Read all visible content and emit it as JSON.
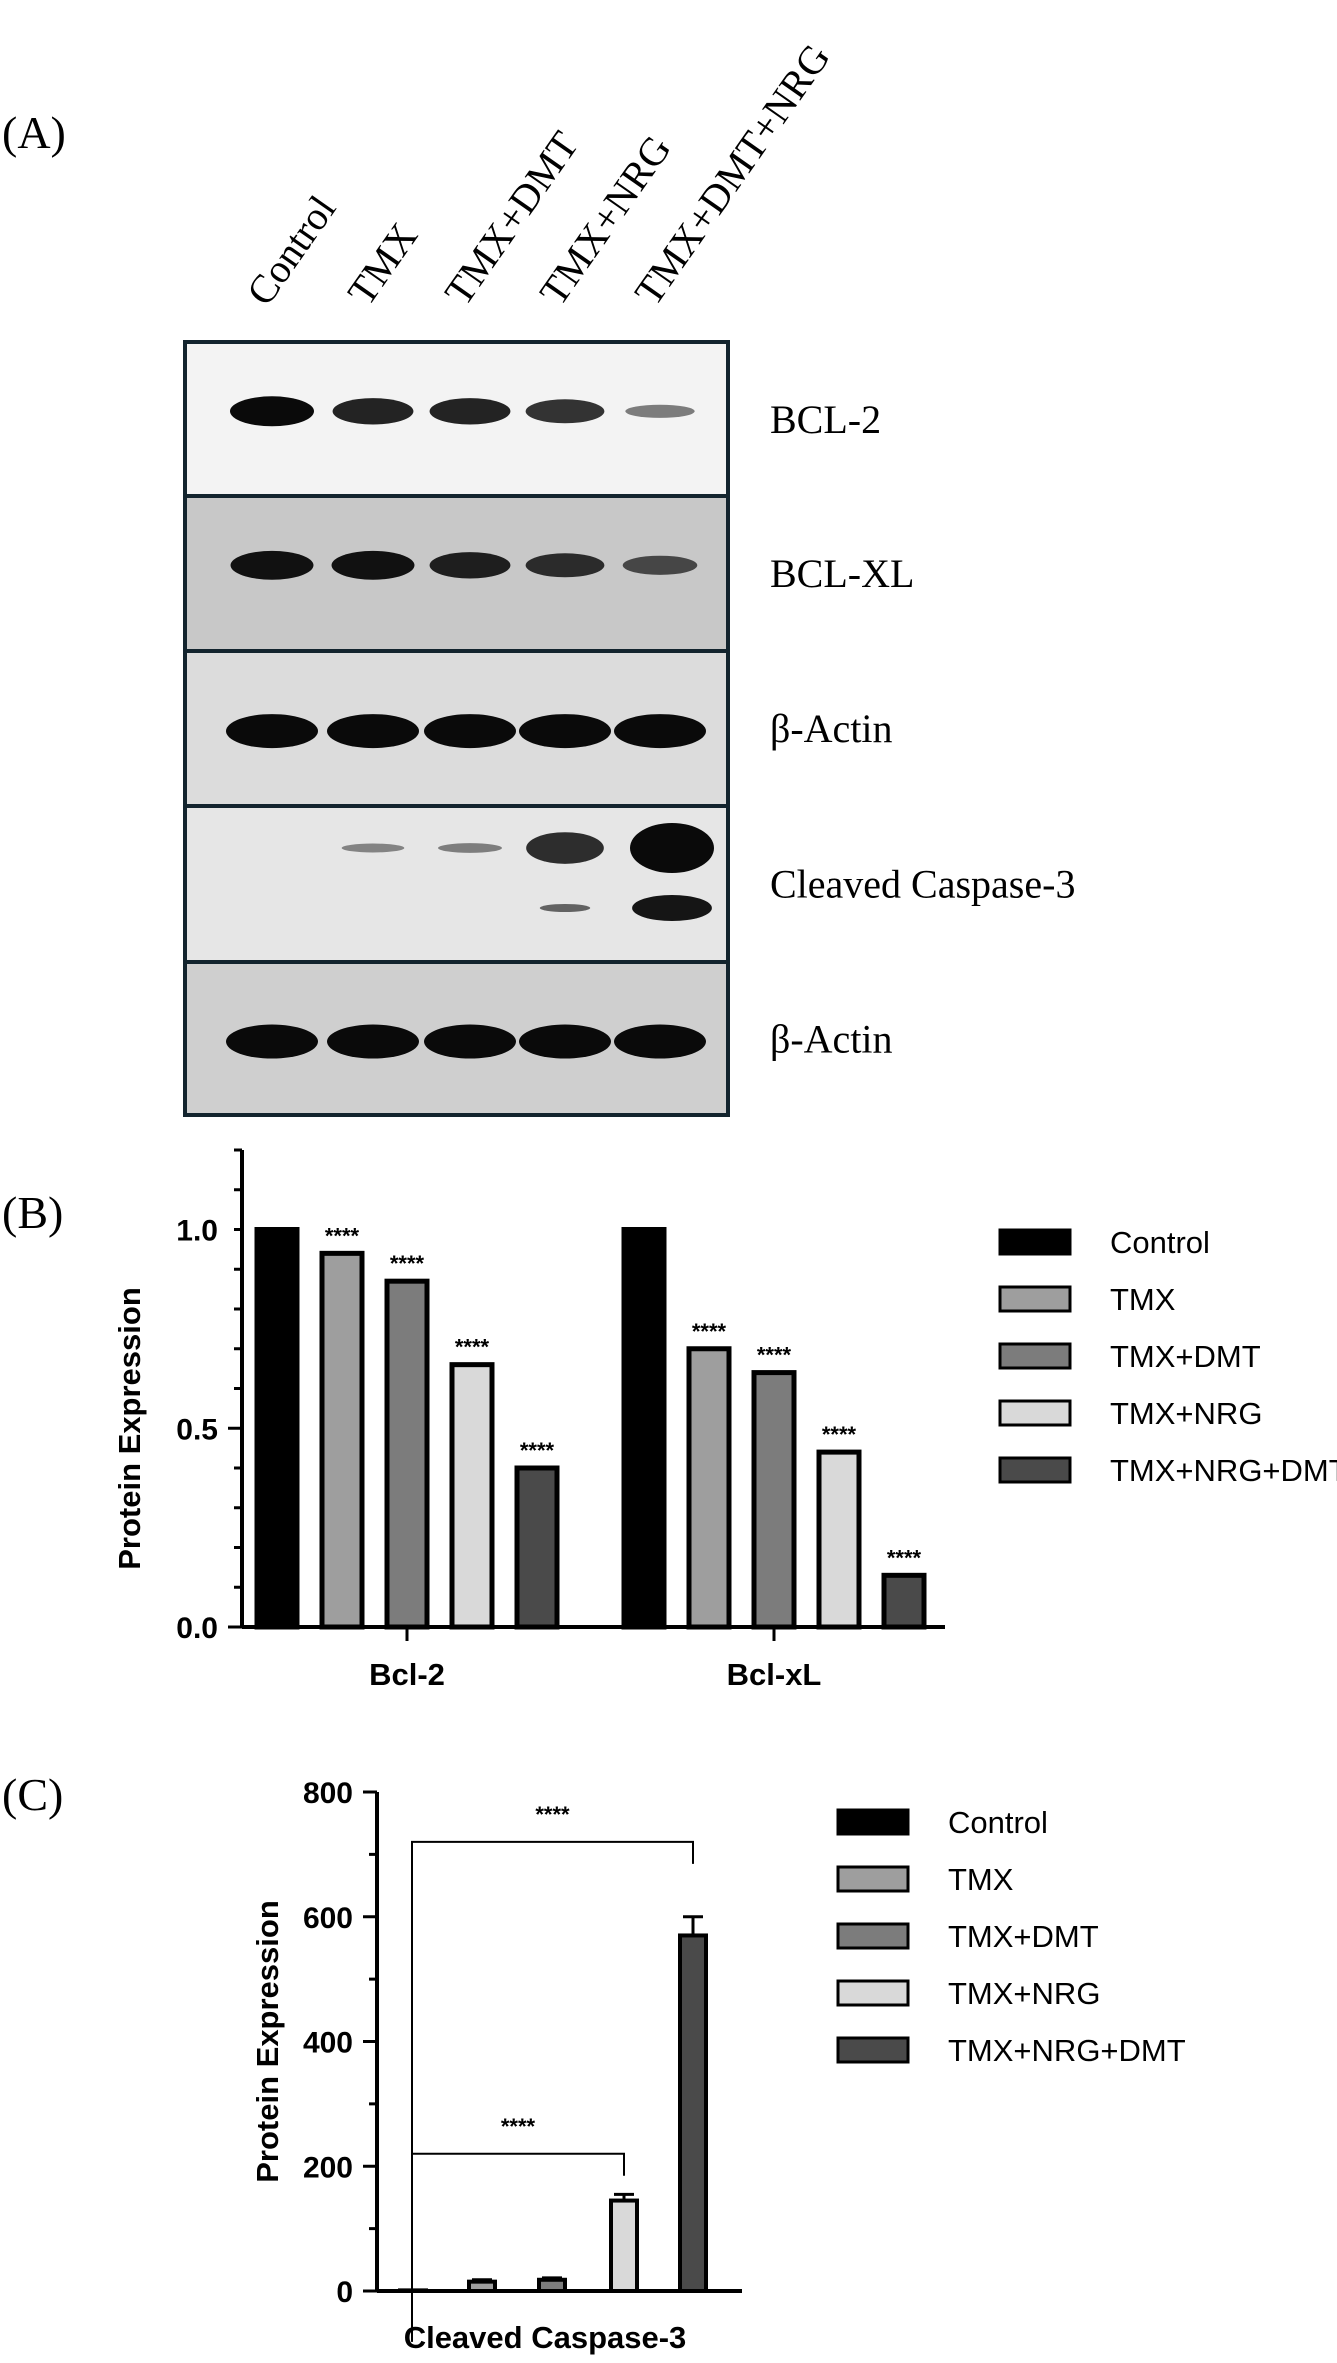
{
  "panels": {
    "a_label": "(A)",
    "b_label": "(B)",
    "c_label": "(C)"
  },
  "blot": {
    "lanes": [
      "Control",
      "TMX",
      "TMX+DMT",
      "TMX+NRG",
      "TMX+DMT+NRG"
    ],
    "rows": [
      {
        "label": "BCL-2",
        "bg": "#f3f3f3",
        "bands": [
          1.0,
          0.85,
          0.85,
          0.75,
          0.3
        ]
      },
      {
        "label": "BCL-XL",
        "bg": "#c8c8c8",
        "bands": [
          0.95,
          0.95,
          0.85,
          0.75,
          0.55
        ]
      },
      {
        "label": "β-Actin",
        "bg": "#dcdcdc",
        "bands": [
          1.0,
          1.0,
          1.0,
          1.0,
          1.0
        ]
      },
      {
        "label": "Cleaved Caspase-3",
        "bg": "#e6e6e6",
        "bands": [
          0.0,
          0.15,
          0.2,
          0.75,
          1.0
        ]
      },
      {
        "label": "β-Actin",
        "bg": "#cfcfcf",
        "bands": [
          1.0,
          1.0,
          1.0,
          1.0,
          1.0
        ]
      }
    ]
  },
  "chart_data": [
    {
      "type": "bar",
      "panel": "B",
      "ylabel": "Protein Expression",
      "xlabel": "",
      "ylim": [
        0,
        1.2
      ],
      "yticks": [
        "0.0",
        "0.5",
        "1.0"
      ],
      "categories": [
        "Bcl-2",
        "Bcl-xL"
      ],
      "series": [
        {
          "name": "Control",
          "values": [
            1.0,
            1.0
          ],
          "sig": [
            "",
            ""
          ],
          "color": "#000000"
        },
        {
          "name": "TMX",
          "values": [
            0.94,
            0.7
          ],
          "sig": [
            "****",
            "****"
          ],
          "color": "#9e9e9e"
        },
        {
          "name": "TMX+DMT",
          "values": [
            0.87,
            0.64
          ],
          "sig": [
            "****",
            "****"
          ],
          "color": "#7c7c7c"
        },
        {
          "name": "TMX+NRG",
          "values": [
            0.66,
            0.44
          ],
          "sig": [
            "****",
            "****"
          ],
          "color": "#d9d9d9"
        },
        {
          "name": "TMX+NRG+DMT",
          "values": [
            0.4,
            0.13
          ],
          "sig": [
            "****",
            "****"
          ],
          "color": "#4a4a4a"
        }
      ],
      "legend": "right"
    },
    {
      "type": "bar",
      "panel": "C",
      "ylabel": "Protein Expression",
      "xlabel": "Cleaved Caspase-3",
      "ylim": [
        0,
        800
      ],
      "yticks": [
        "0",
        "200",
        "400",
        "600",
        "800"
      ],
      "categories": [
        "Cleaved Caspase-3"
      ],
      "series": [
        {
          "name": "Control",
          "values": [
            1
          ],
          "error": [
            0
          ],
          "color": "#000000"
        },
        {
          "name": "TMX",
          "values": [
            15
          ],
          "error": [
            3
          ],
          "color": "#9e9e9e"
        },
        {
          "name": "TMX+DMT",
          "values": [
            18
          ],
          "error": [
            3
          ],
          "color": "#7c7c7c"
        },
        {
          "name": "TMX+NRG",
          "values": [
            145
          ],
          "error": [
            10
          ],
          "color": "#d9d9d9"
        },
        {
          "name": "TMX+NRG+DMT",
          "values": [
            570
          ],
          "error": [
            30
          ],
          "color": "#4a4a4a"
        }
      ],
      "brackets": [
        {
          "from": "Control",
          "to": "TMX+NRG+DMT",
          "label": "****",
          "y": 720
        },
        {
          "from": "Control",
          "to": "TMX+NRG",
          "label": "****",
          "y": 220
        }
      ],
      "legend": "right"
    }
  ]
}
